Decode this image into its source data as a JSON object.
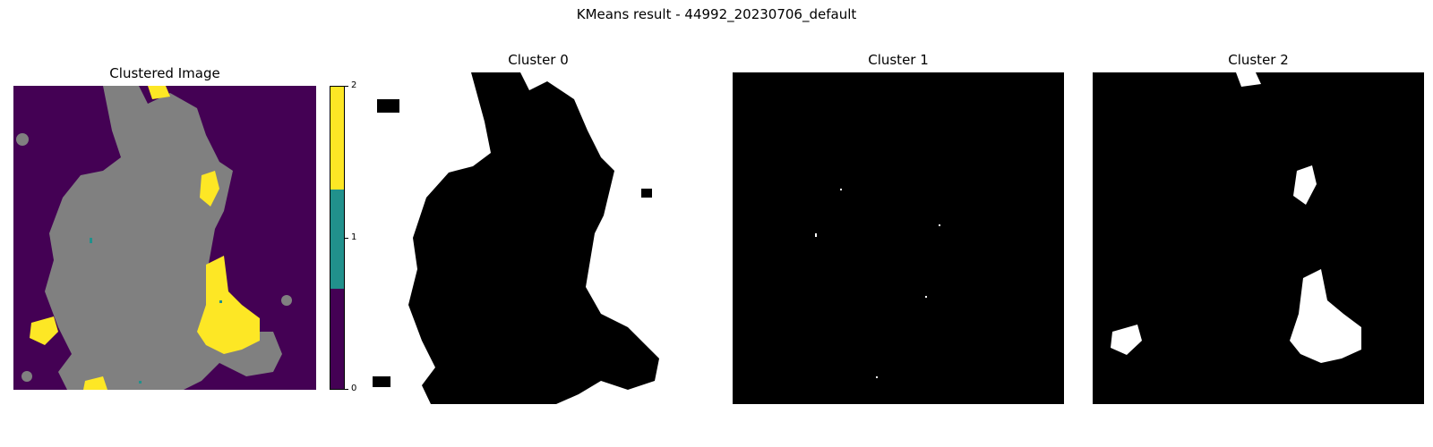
{
  "figure": {
    "suptitle": "KMeans result - 44992_20230706_default"
  },
  "colors": {
    "cluster0": "#440154",
    "cluster1": "#21918c",
    "cluster2": "#fde725",
    "masked": "#808080",
    "mask_on": "#ffffff",
    "mask_off": "#000000"
  },
  "panels": [
    {
      "title": "Clustered Image",
      "kind": "clustered"
    },
    {
      "title": "Cluster 0",
      "kind": "mask",
      "cluster": 0
    },
    {
      "title": "Cluster 1",
      "kind": "mask",
      "cluster": 1
    },
    {
      "title": "Cluster 2",
      "kind": "mask",
      "cluster": 2
    }
  ],
  "chart_data": {
    "type": "heatmap",
    "title": "Clustered Image",
    "colorbar": {
      "ticks": [
        "0",
        "1",
        "2"
      ],
      "range": [
        0,
        2
      ]
    },
    "categories": [
      "0",
      "1",
      "2"
    ]
  }
}
